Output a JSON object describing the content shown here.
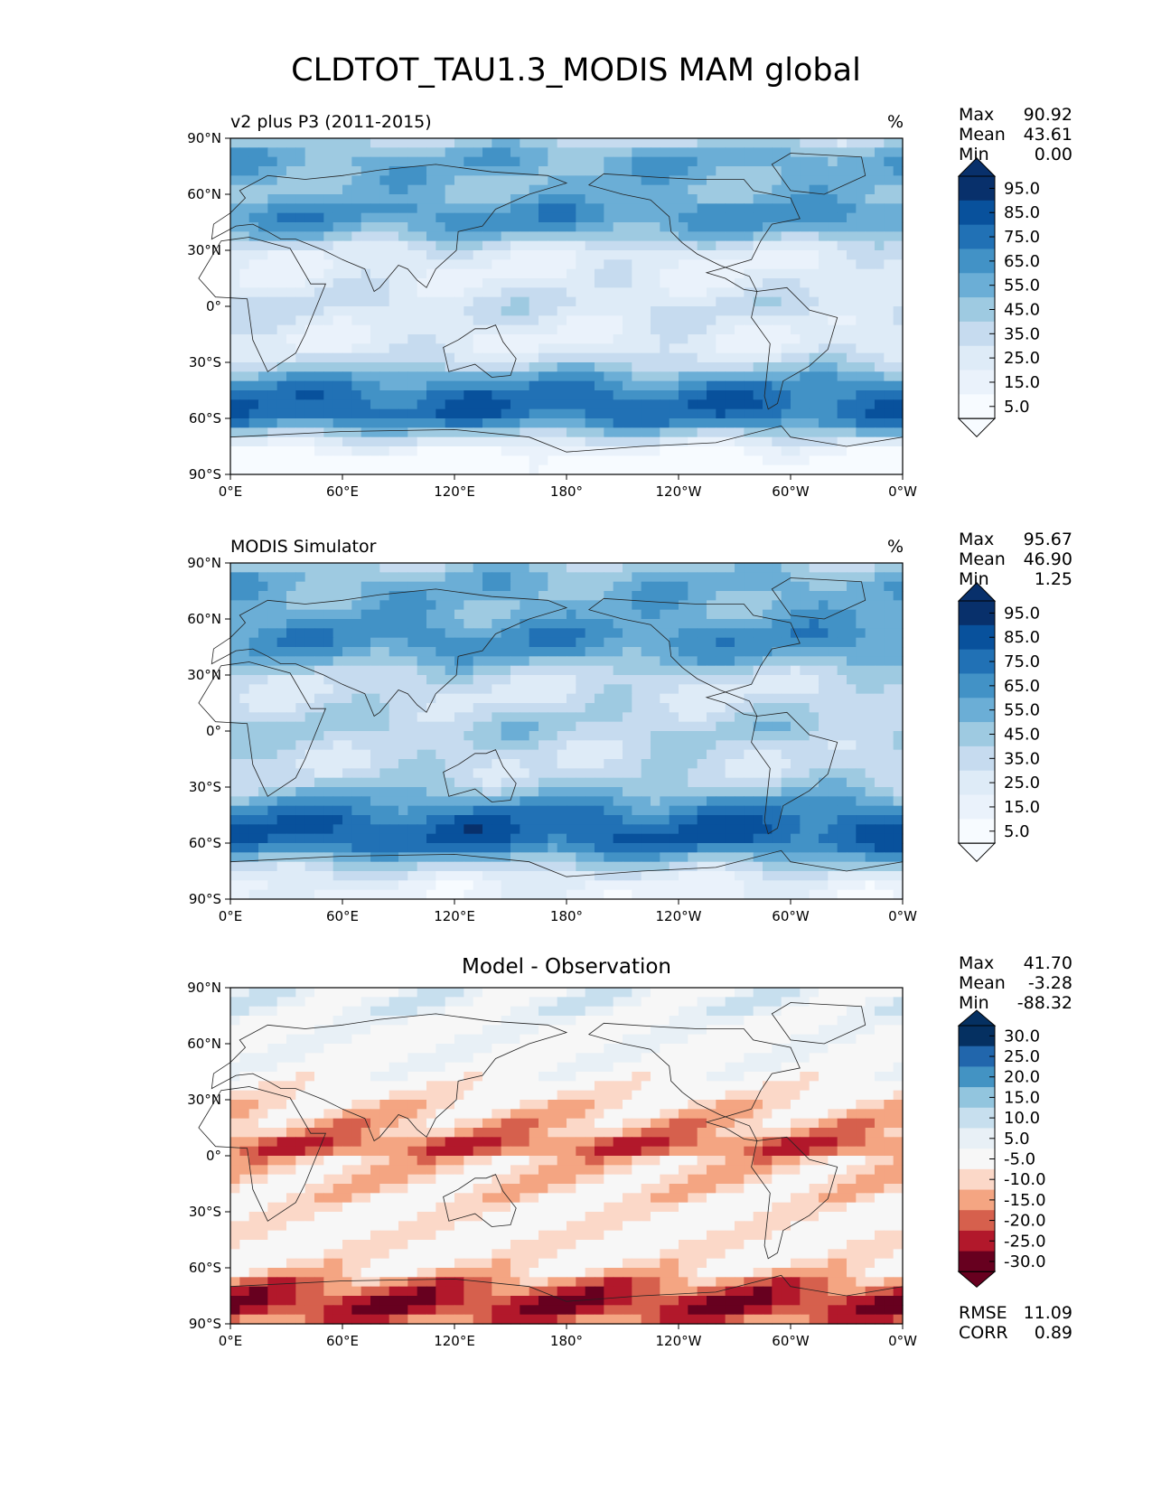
{
  "chart_data": {
    "type": "heatmap",
    "title": "CLDTOT_TAU1.3_MODIS MAM global",
    "x_ticks": [
      "0°E",
      "60°E",
      "120°E",
      "180°",
      "120°W",
      "60°W",
      "0°W"
    ],
    "y_ticks": [
      "90°N",
      "60°N",
      "30°N",
      "0°",
      "30°S",
      "60°S",
      "90°S"
    ],
    "panels": [
      {
        "title": "v2 plus P3 (2011-2015)",
        "units": "%",
        "stats": [
          {
            "label": "Max",
            "value": "90.92"
          },
          {
            "label": "Mean",
            "value": "43.61"
          },
          {
            "label": "Min",
            "value": "0.00"
          }
        ],
        "colorbar": {
          "labels": [
            "95.0",
            "85.0",
            "75.0",
            "65.0",
            "55.0",
            "45.0",
            "35.0",
            "25.0",
            "15.0",
            "5.0"
          ],
          "colors": [
            "#08306b",
            "#08519c",
            "#2171b5",
            "#4292c6",
            "#6baed6",
            "#9ecae1",
            "#c6dbef",
            "#deebf7",
            "#eaf2fb",
            "#f7fbff"
          ],
          "extend": "both"
        },
        "zonal_mean_by_lat": [
          [
            90,
            40
          ],
          [
            80,
            62
          ],
          [
            70,
            58
          ],
          [
            60,
            55
          ],
          [
            50,
            70
          ],
          [
            40,
            60
          ],
          [
            30,
            30
          ],
          [
            20,
            25
          ],
          [
            10,
            30
          ],
          [
            0,
            38
          ],
          [
            -10,
            30
          ],
          [
            -20,
            25
          ],
          [
            -30,
            40
          ],
          [
            -40,
            68
          ],
          [
            -50,
            82
          ],
          [
            -60,
            80
          ],
          [
            -70,
            40
          ],
          [
            -80,
            8
          ],
          [
            -90,
            3
          ]
        ]
      },
      {
        "title": "MODIS Simulator",
        "units": "%",
        "stats": [
          {
            "label": "Max",
            "value": "95.67"
          },
          {
            "label": "Mean",
            "value": "46.90"
          },
          {
            "label": "Min",
            "value": "1.25"
          }
        ],
        "colorbar": {
          "labels": [
            "95.0",
            "85.0",
            "75.0",
            "65.0",
            "55.0",
            "45.0",
            "35.0",
            "25.0",
            "15.0",
            "5.0"
          ],
          "colors": [
            "#08306b",
            "#08519c",
            "#2171b5",
            "#4292c6",
            "#6baed6",
            "#9ecae1",
            "#c6dbef",
            "#deebf7",
            "#eaf2fb",
            "#f7fbff"
          ],
          "extend": "both"
        },
        "zonal_mean_by_lat": [
          [
            90,
            45
          ],
          [
            80,
            60
          ],
          [
            70,
            58
          ],
          [
            60,
            62
          ],
          [
            50,
            72
          ],
          [
            40,
            62
          ],
          [
            30,
            40
          ],
          [
            20,
            35
          ],
          [
            10,
            42
          ],
          [
            0,
            48
          ],
          [
            -10,
            40
          ],
          [
            -20,
            38
          ],
          [
            -30,
            48
          ],
          [
            -40,
            70
          ],
          [
            -50,
            85
          ],
          [
            -60,
            84
          ],
          [
            -70,
            50
          ],
          [
            -80,
            25
          ],
          [
            -90,
            20
          ]
        ]
      },
      {
        "title": "Model - Observation",
        "units": "",
        "stats": [
          {
            "label": "Max",
            "value": "41.70"
          },
          {
            "label": "Mean",
            "value": "-3.28"
          },
          {
            "label": "Min",
            "value": "-88.32"
          }
        ],
        "extra_stats": [
          {
            "label": "RMSE",
            "value": "11.09"
          },
          {
            "label": "CORR",
            "value": "0.89"
          }
        ],
        "colorbar": {
          "labels": [
            "30.0",
            "25.0",
            "20.0",
            "15.0",
            "10.0",
            "5.0",
            "-5.0",
            "-10.0",
            "-15.0",
            "-20.0",
            "-25.0",
            "-30.0"
          ],
          "colors": [
            "#053061",
            "#2166ac",
            "#4393c3",
            "#92c5de",
            "#c7dfee",
            "#e8f0f6",
            "#f7f7f7",
            "#fbd8c8",
            "#f4a582",
            "#d6604d",
            "#b2182b",
            "#67001f"
          ],
          "extend": "both"
        },
        "zonal_mean_by_lat": [
          [
            90,
            5
          ],
          [
            80,
            8
          ],
          [
            70,
            2
          ],
          [
            60,
            3
          ],
          [
            50,
            2
          ],
          [
            40,
            0
          ],
          [
            30,
            -5
          ],
          [
            20,
            -10
          ],
          [
            10,
            -12
          ],
          [
            5,
            -22
          ],
          [
            0,
            -10
          ],
          [
            -10,
            -8
          ],
          [
            -20,
            -6
          ],
          [
            -30,
            -3
          ],
          [
            -40,
            -2
          ],
          [
            -50,
            -3
          ],
          [
            -60,
            -5
          ],
          [
            -70,
            -18
          ],
          [
            -80,
            -25
          ],
          [
            -90,
            -15
          ]
        ]
      }
    ]
  }
}
